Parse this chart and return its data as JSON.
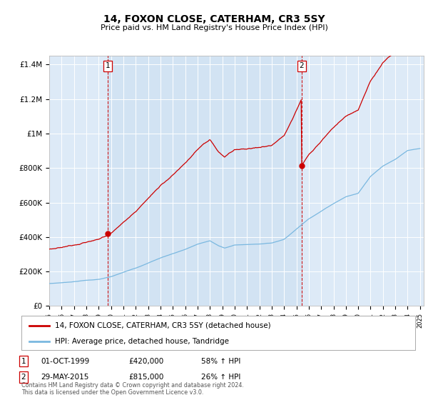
{
  "title": "14, FOXON CLOSE, CATERHAM, CR3 5SY",
  "subtitle": "Price paid vs. HM Land Registry's House Price Index (HPI)",
  "plot_bg_color": "#ddeaf7",
  "hpi_color": "#7ab8e0",
  "price_color": "#cc0000",
  "vline_color": "#cc0000",
  "shade_color": "#c8ddf0",
  "purchases": [
    {
      "date_num": 1999.75,
      "price": 420000,
      "label": "1",
      "date_str": "01-OCT-1999",
      "pct": "58% ↑ HPI"
    },
    {
      "date_num": 2015.41,
      "price": 815000,
      "label": "2",
      "date_str": "29-MAY-2015",
      "pct": "26% ↑ HPI"
    }
  ],
  "legend_line1": "14, FOXON CLOSE, CATERHAM, CR3 5SY (detached house)",
  "legend_line2": "HPI: Average price, detached house, Tandridge",
  "footer": "Contains HM Land Registry data © Crown copyright and database right 2024.\nThis data is licensed under the Open Government Licence v3.0.",
  "xmin": 1995.0,
  "xmax": 2025.3,
  "ymin": 0,
  "ymax": 1450000
}
